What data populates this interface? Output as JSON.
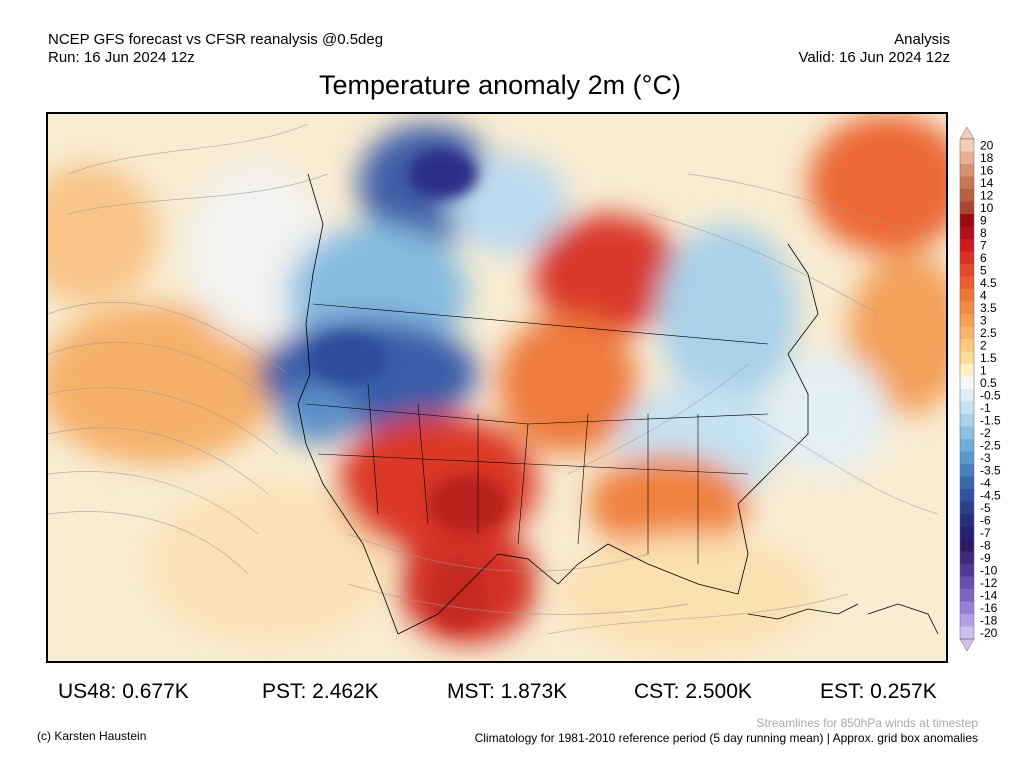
{
  "header": {
    "line1_left": "NCEP GFS forecast vs CFSR reanalysis @0.5deg",
    "line2_left": "Run: 16 Jun 2024 12z",
    "line1_right": "Analysis",
    "line2_right": "Valid: 16 Jun 2024 12z"
  },
  "title": "Temperature anomaly 2m (°C)",
  "legend": {
    "labels": [
      "20",
      "18",
      "16",
      "14",
      "12",
      "10",
      "9",
      "8",
      "7",
      "6",
      "5",
      "4.5",
      "4",
      "3.5",
      "3",
      "2.5",
      "2",
      "1.5",
      "1",
      "0.5",
      "-0.5",
      "-1",
      "-1.5",
      "-2",
      "-2.5",
      "-3",
      "-3.5",
      "-4",
      "-4.5",
      "-5",
      "-6",
      "-7",
      "-8",
      "-9",
      "-10",
      "-12",
      "-14",
      "-16",
      "-18",
      "-20"
    ],
    "colors": [
      "#f4cdb3",
      "#e8b093",
      "#d99270",
      "#c97852",
      "#b8603f",
      "#a8492f",
      "#9b0a12",
      "#b40f1a",
      "#cc1c22",
      "#dc3126",
      "#e4492c",
      "#ea5e30",
      "#ee7638",
      "#f28b45",
      "#f5a055",
      "#f8b468",
      "#fbc97e",
      "#fddb97",
      "#fff0c0",
      "#f7f7f7",
      "#dceef9",
      "#c3e2f3",
      "#a7d2ea",
      "#8cc1e2",
      "#72add8",
      "#5b98cc",
      "#4881bd",
      "#3b69ae",
      "#2f539f",
      "#28408e",
      "#24307f",
      "#261f72",
      "#2d1867",
      "#42267f",
      "#55379a",
      "#6a4cb3",
      "#8062c7",
      "#9a7fd8",
      "#b59ee6",
      "#cfbef2"
    ]
  },
  "stats": [
    {
      "label": "US48: 0.677K"
    },
    {
      "label": "PST: 2.462K"
    },
    {
      "label": "MST: 1.873K"
    },
    {
      "label": "CST: 2.500K"
    },
    {
      "label": "EST: 0.257K"
    }
  ],
  "footer": {
    "credit": "(c) Karsten Haustein",
    "streamlines": "Streamlines for 850hPa winds at timestep",
    "climatology": "Climatology for 1981-2010 reference period (5 day running mean) | Approx. grid box anomalies"
  }
}
